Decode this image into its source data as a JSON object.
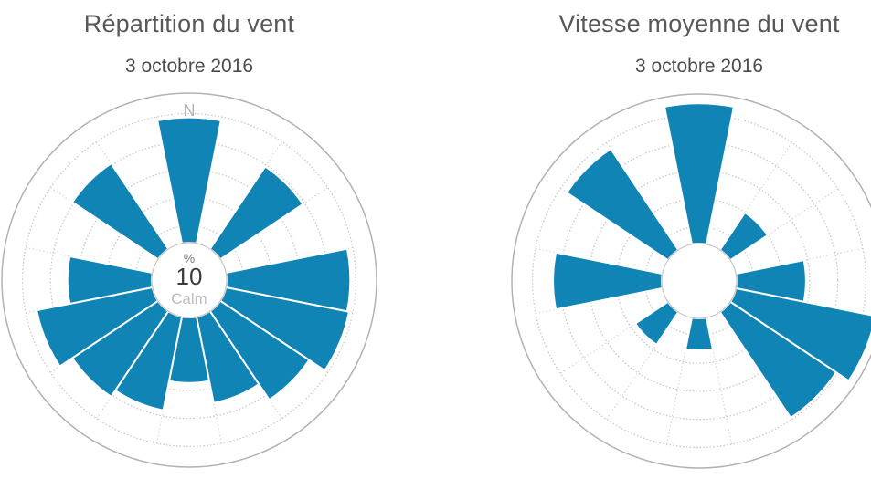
{
  "page": {
    "background": "#ffffff",
    "accent_color": "#0f84b5",
    "grid_color": "#ccc8c8",
    "outer_ring_color": "#b2b2b2",
    "title_color": "#58585a"
  },
  "chart_data": [
    {
      "type": "windrose",
      "title": "Répartition du vent",
      "subtitle": "3 octobre 2016",
      "north_label": "N",
      "center_labels": {
        "unit": "%",
        "value": "10",
        "calm": "Calm"
      },
      "directions": [
        "N",
        "NNE",
        "NE",
        "ENE",
        "E",
        "ESE",
        "SE",
        "SSE",
        "S",
        "SSW",
        "SW",
        "WSW",
        "W",
        "WNW",
        "NW",
        "NNW"
      ],
      "values_fraction_of_max_radius": [
        0.87,
        0,
        0.73,
        0,
        0.86,
        0.87,
        0.77,
        0.67,
        0.55,
        0.71,
        0.75,
        0.83,
        0.65,
        0,
        0.75,
        0
      ],
      "angle_step_deg": 22.5,
      "color": "#0f84b5",
      "grid": {
        "rings_fraction": [
          0.29,
          0.44,
          0.59,
          0.74,
          0.89
        ],
        "spokes_every_deg": 22.5,
        "center_hole_fraction": 0.2,
        "style": "dotted"
      },
      "legend": "none"
    },
    {
      "type": "windrose",
      "title": "Vitesse moyenne du vent",
      "subtitle": "3 octobre 2016",
      "north_label": "",
      "center_labels": {
        "unit": "",
        "value": "",
        "calm": ""
      },
      "directions": [
        "N",
        "NNE",
        "NE",
        "ENE",
        "E",
        "ESE",
        "SE",
        "SSE",
        "S",
        "SSW",
        "SW",
        "WSW",
        "W",
        "WNW",
        "NW",
        "NNW"
      ],
      "values_fraction_of_max_radius": [
        0.95,
        0,
        0.44,
        0,
        0.57,
        0.96,
        0.88,
        0,
        0.37,
        0,
        0.41,
        0,
        0.78,
        0,
        0.85,
        0
      ],
      "angle_step_deg": 22.5,
      "color": "#0f84b5",
      "grid": {
        "rings_fraction": [
          0.29,
          0.44,
          0.59,
          0.74,
          0.89
        ],
        "spokes_every_deg": 22.5,
        "center_hole_fraction": 0.2,
        "style": "dotted"
      },
      "legend": "none",
      "note_clipped_right_edge": true
    }
  ]
}
